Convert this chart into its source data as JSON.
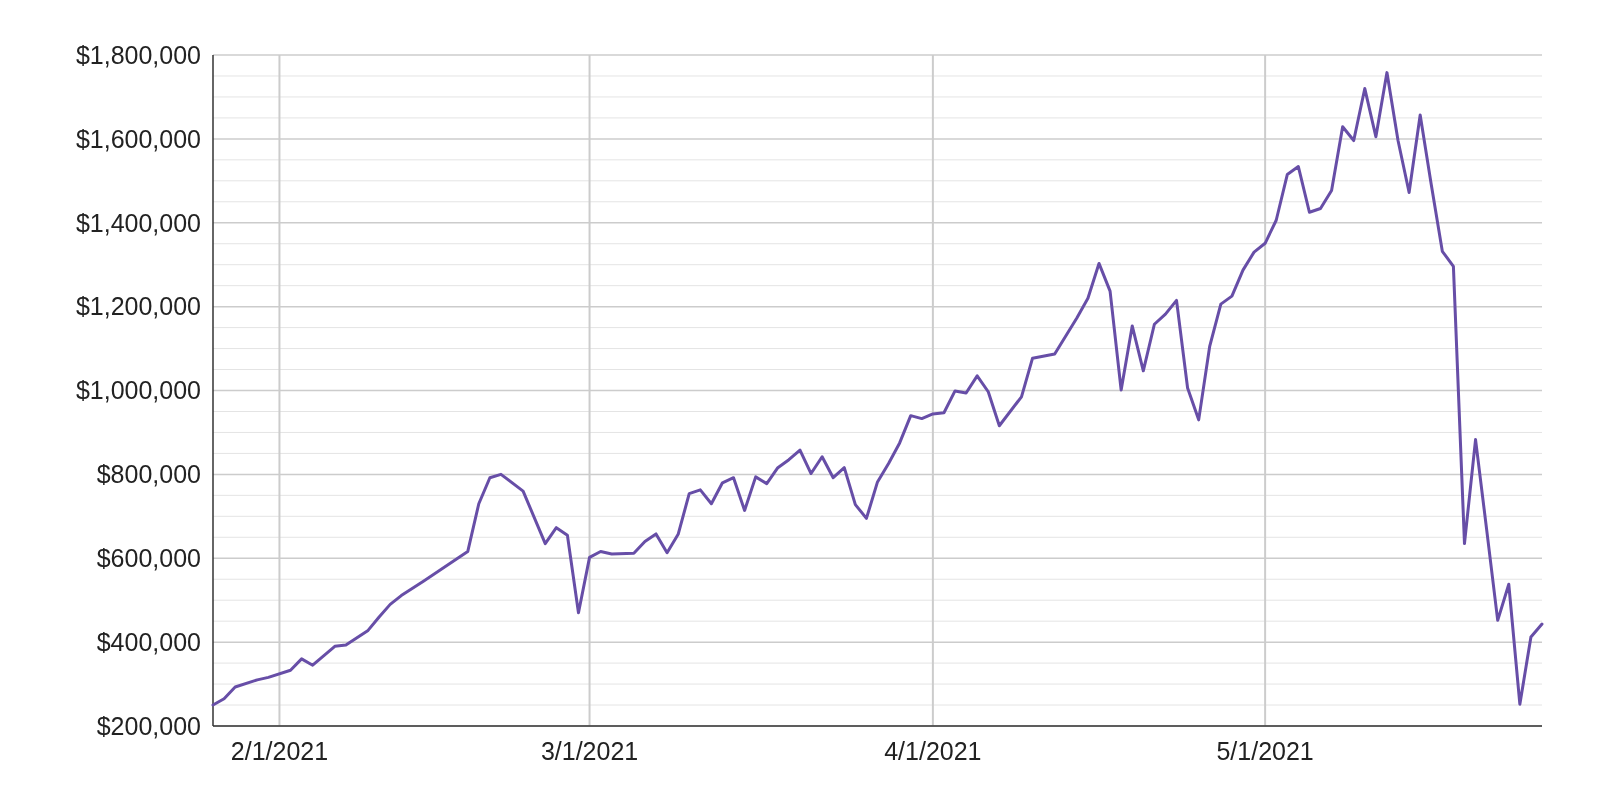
{
  "chart_data": {
    "type": "line",
    "x": [
      "2021-01-26",
      "2021-01-27",
      "2021-01-28",
      "2021-01-30",
      "2021-01-31",
      "2021-02-02",
      "2021-02-03",
      "2021-02-04",
      "2021-02-06",
      "2021-02-07",
      "2021-02-09",
      "2021-02-10",
      "2021-02-11",
      "2021-02-12",
      "2021-02-14",
      "2021-02-18",
      "2021-02-19",
      "2021-02-20",
      "2021-02-21",
      "2021-02-23",
      "2021-02-25",
      "2021-02-26",
      "2021-02-27",
      "2021-02-28",
      "2021-03-01",
      "2021-03-02",
      "2021-03-03",
      "2021-03-05",
      "2021-03-06",
      "2021-03-07",
      "2021-03-08",
      "2021-03-09",
      "2021-03-10",
      "2021-03-11",
      "2021-03-12",
      "2021-03-13",
      "2021-03-14",
      "2021-03-15",
      "2021-03-16",
      "2021-03-17",
      "2021-03-18",
      "2021-03-19",
      "2021-03-20",
      "2021-03-21",
      "2021-03-22",
      "2021-03-23",
      "2021-03-24",
      "2021-03-25",
      "2021-03-26",
      "2021-03-27",
      "2021-03-28",
      "2021-03-29",
      "2021-03-30",
      "2021-03-31",
      "2021-04-01",
      "2021-04-02",
      "2021-04-03",
      "2021-04-04",
      "2021-04-05",
      "2021-04-06",
      "2021-04-07",
      "2021-04-09",
      "2021-04-10",
      "2021-04-12",
      "2021-04-14",
      "2021-04-15",
      "2021-04-16",
      "2021-04-17",
      "2021-04-18",
      "2021-04-19",
      "2021-04-20",
      "2021-04-21",
      "2021-04-22",
      "2021-04-23",
      "2021-04-24",
      "2021-04-25",
      "2021-04-26",
      "2021-04-27",
      "2021-04-28",
      "2021-04-29",
      "2021-04-30",
      "2021-05-01",
      "2021-05-02",
      "2021-05-03",
      "2021-05-04",
      "2021-05-05",
      "2021-05-06",
      "2021-05-07",
      "2021-05-08",
      "2021-05-09",
      "2021-05-10",
      "2021-05-11",
      "2021-05-12",
      "2021-05-13",
      "2021-05-14",
      "2021-05-15",
      "2021-05-16",
      "2021-05-17",
      "2021-05-18",
      "2021-05-19",
      "2021-05-20",
      "2021-05-21",
      "2021-05-22",
      "2021-05-23",
      "2021-05-24",
      "2021-05-25",
      "2021-05-26"
    ],
    "series": [
      {
        "color": "#674ea7",
        "values": [
          250000,
          265000,
          293000,
          310000,
          316000,
          333000,
          360000,
          345000,
          390000,
          393000,
          428000,
          460000,
          490000,
          511000,
          545000,
          616000,
          730000,
          792000,
          800000,
          760000,
          635000,
          673000,
          655000,
          470000,
          602000,
          616000,
          610000,
          612000,
          640000,
          658000,
          613000,
          657000,
          754000,
          763000,
          730000,
          780000,
          792000,
          714000,
          794000,
          778000,
          816000,
          835000,
          858000,
          802000,
          842000,
          792000,
          816000,
          728000,
          695000,
          782000,
          826000,
          875000,
          940000,
          933000,
          944000,
          947000,
          999000,
          994000,
          1035000,
          997000,
          916000,
          985000,
          1077000,
          1087000,
          1173000,
          1220000,
          1303000,
          1237000,
          1001000,
          1154000,
          1047000,
          1158000,
          1182000,
          1215000,
          1006000,
          930000,
          1106000,
          1206000,
          1225000,
          1287000,
          1330000,
          1351000,
          1406000,
          1515000,
          1534000,
          1425000,
          1434000,
          1477000,
          1629000,
          1596000,
          1720000,
          1605000,
          1758000,
          1596000,
          1472000,
          1657000,
          1491000,
          1332000,
          1296000,
          635000,
          883000,
          669000,
          452000,
          538000,
          252000,
          412000,
          443000
        ]
      }
    ],
    "xlim": [
      "2021-01-26",
      "2021-05-26"
    ],
    "xticks": [
      {
        "value": "2021-02-01",
        "label": "2/1/2021"
      },
      {
        "value": "2021-03-01",
        "label": "3/1/2021"
      },
      {
        "value": "2021-04-01",
        "label": "4/1/2021"
      },
      {
        "value": "2021-05-01",
        "label": "5/1/2021"
      }
    ],
    "ylim": [
      200000,
      1800000
    ],
    "yticks": [
      {
        "value": 200000,
        "label": "$200,000"
      },
      {
        "value": 250000,
        "label": null
      },
      {
        "value": 300000,
        "label": null
      },
      {
        "value": 350000,
        "label": null
      },
      {
        "value": 400000,
        "label": "$400,000"
      },
      {
        "value": 450000,
        "label": null
      },
      {
        "value": 500000,
        "label": null
      },
      {
        "value": 550000,
        "label": null
      },
      {
        "value": 600000,
        "label": "$600,000"
      },
      {
        "value": 650000,
        "label": null
      },
      {
        "value": 700000,
        "label": null
      },
      {
        "value": 750000,
        "label": null
      },
      {
        "value": 800000,
        "label": "$800,000"
      },
      {
        "value": 850000,
        "label": null
      },
      {
        "value": 900000,
        "label": null
      },
      {
        "value": 950000,
        "label": null
      },
      {
        "value": 1000000,
        "label": "$1,000,000"
      },
      {
        "value": 1050000,
        "label": null
      },
      {
        "value": 1100000,
        "label": null
      },
      {
        "value": 1150000,
        "label": null
      },
      {
        "value": 1200000,
        "label": "$1,200,000"
      },
      {
        "value": 1250000,
        "label": null
      },
      {
        "value": 1300000,
        "label": null
      },
      {
        "value": 1350000,
        "label": null
      },
      {
        "value": 1400000,
        "label": "$1,400,000"
      },
      {
        "value": 1450000,
        "label": null
      },
      {
        "value": 1500000,
        "label": null
      },
      {
        "value": 1550000,
        "label": null
      },
      {
        "value": 1600000,
        "label": "$1,600,000"
      },
      {
        "value": 1650000,
        "label": null
      },
      {
        "value": 1700000,
        "label": null
      },
      {
        "value": 1750000,
        "label": null
      },
      {
        "value": 1800000,
        "label": "$1,800,000"
      }
    ],
    "grid": true,
    "marker": "none",
    "line_style": "solid"
  }
}
